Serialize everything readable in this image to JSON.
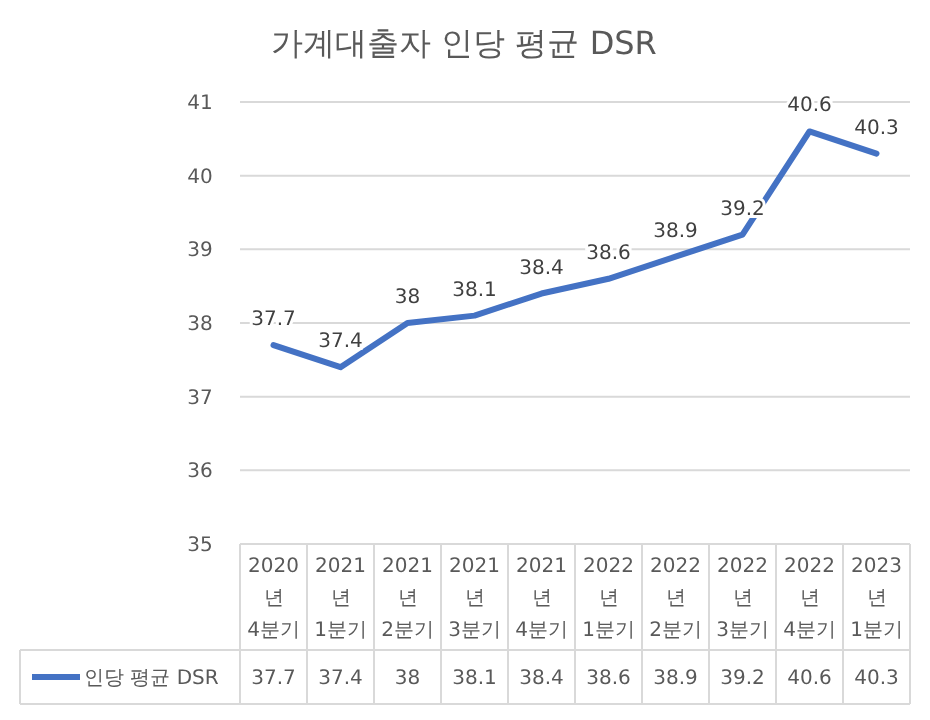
{
  "chart_data": {
    "type": "line",
    "title": "가계대출자 인당 평균 DSR",
    "categories": [
      "2020년 4분기",
      "2021년 1분기",
      "2021년 2분기",
      "2021년 3분기",
      "2021년 4분기",
      "2022년 1분기",
      "2022년 2분기",
      "2022년 3분기",
      "2022년 4분기",
      "2023년 1분기"
    ],
    "series": [
      {
        "name": "인당 평균 DSR",
        "color": "#4472c4",
        "values": [
          37.7,
          37.4,
          38,
          38.1,
          38.4,
          38.6,
          38.9,
          39.2,
          40.6,
          40.3
        ]
      }
    ],
    "annotations": [
      {
        "text": "37.7",
        "x": "2020년 4분기",
        "y": 37.7
      },
      {
        "text": "37.4",
        "x": "2021년 1분기",
        "y": 37.4
      },
      {
        "text": "38",
        "x": "2021년 2분기",
        "y": 38
      },
      {
        "text": "38.1",
        "x": "2021년 3분기",
        "y": 38.1
      },
      {
        "text": "38.4",
        "x": "2021년 4분기",
        "y": 38.4
      },
      {
        "text": "38.6",
        "x": "2022년 1분기",
        "y": 38.6
      },
      {
        "text": "38.9",
        "x": "2022년 2분기",
        "y": 38.9
      },
      {
        "text": "39.2",
        "x": "2022년 3분기",
        "y": 39.2
      },
      {
        "text": "40.6",
        "x": "2022년 4분기",
        "y": 40.6
      },
      {
        "text": "40.3",
        "x": "2023년 1분기",
        "y": 40.3
      }
    ],
    "ylim": [
      35,
      41
    ],
    "yticks": [
      35,
      36,
      37,
      38,
      39,
      40,
      41
    ],
    "grid": "y",
    "data_labels": true,
    "legend": "bottom",
    "marker": "none",
    "line_style": "solid"
  }
}
